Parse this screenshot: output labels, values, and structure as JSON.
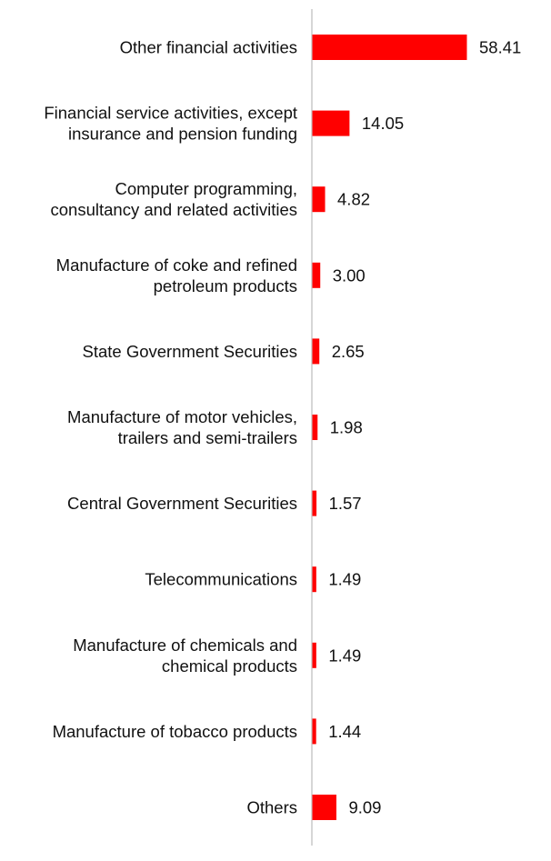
{
  "chart_data": {
    "type": "bar",
    "orientation": "horizontal",
    "title": "",
    "xlabel": "",
    "ylabel": "",
    "categories": [
      "Other financial activities",
      "Financial service activities, except insurance and pension funding",
      "Computer programming, consultancy and related activities",
      "Manufacture of coke and refined petroleum products",
      "State Government Securities",
      "Manufacture of motor vehicles, trailers and semi-trailers",
      "Central Government Securities",
      "Telecommunications",
      "Manufacture of chemicals and chemical products",
      "Manufacture of tobacco products",
      "Others"
    ],
    "category_lines": [
      [
        "Other financial activities"
      ],
      [
        "Financial service activities, except",
        "insurance and pension funding"
      ],
      [
        "Computer programming,",
        "consultancy and related activities"
      ],
      [
        "Manufacture of coke and refined",
        "petroleum products"
      ],
      [
        "State Government Securities"
      ],
      [
        "Manufacture of motor vehicles,",
        "trailers and semi-trailers"
      ],
      [
        "Central Government Securities"
      ],
      [
        "Telecommunications"
      ],
      [
        "Manufacture of chemicals and",
        "chemical products"
      ],
      [
        "Manufacture of tobacco products"
      ],
      [
        "Others"
      ]
    ],
    "values": [
      58.41,
      14.05,
      4.82,
      3.0,
      2.65,
      1.98,
      1.57,
      1.49,
      1.49,
      1.44,
      9.09
    ],
    "value_labels": [
      "58.41",
      "14.05",
      "4.82",
      "3.00",
      "2.65",
      "1.98",
      "1.57",
      "1.49",
      "1.49",
      "1.44",
      "9.09"
    ],
    "xlim": [
      0,
      60
    ],
    "grid": false,
    "legend": "none",
    "colors": {
      "bar": "#ff0000",
      "axis": "#c8c8c8",
      "text": "#111111"
    }
  }
}
